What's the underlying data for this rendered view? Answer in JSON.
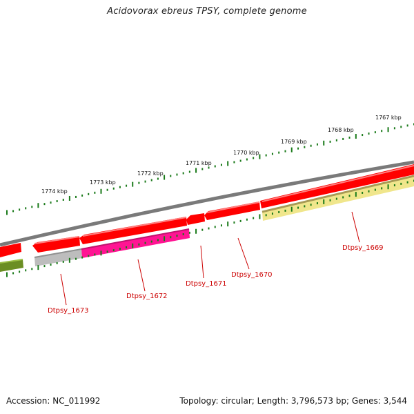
{
  "title": "Acidovorax ebreus TPSY, complete genome",
  "footer": {
    "accession": "Accession: NC_011992",
    "summary": "Topology: circular; Length: 3,796,573 bp; Genes: 3,544"
  },
  "ruler_labels": [
    "1774 kbp",
    "1773 kbp",
    "1772 kbp",
    "1771 kbp",
    "1770 kbp",
    "1769 kbp",
    "1768 kbp",
    "1767 kbp"
  ],
  "gene_labels": [
    "Dtpsy_1673",
    "Dtpsy_1672",
    "Dtpsy_1671",
    "Dtpsy_1670",
    "Dtpsy_1669"
  ],
  "colors": {
    "ruler": "#1a7a1a",
    "backbone": "#808080",
    "gene_red": "#ff0000",
    "gene_pink": "#ff1493",
    "gene_gray": "#b8b8b8",
    "gene_yellow": "#f0e68c",
    "gene_olive": "#6b8e23",
    "label": "#cc0000"
  }
}
